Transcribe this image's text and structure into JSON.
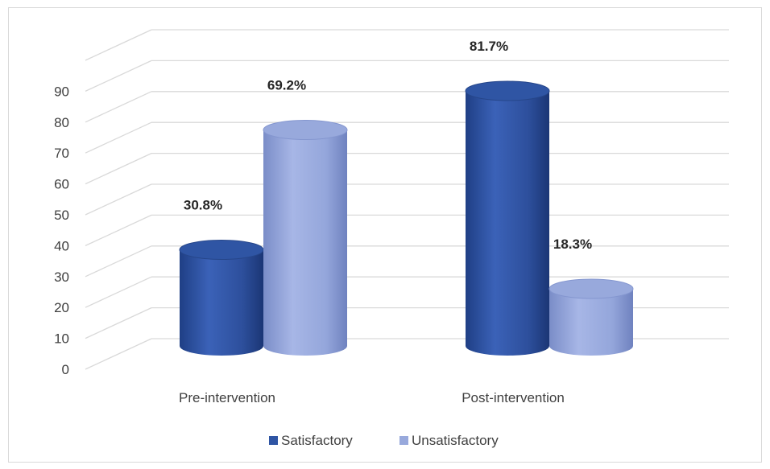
{
  "chart_data": {
    "type": "bar",
    "style": "3d-cylinder",
    "categories": [
      "Pre-intervention",
      "Post-intervention"
    ],
    "series": [
      {
        "name": "Satisfactory",
        "values": [
          30.8,
          81.7
        ],
        "labels": [
          "30.8%",
          "81.7%"
        ],
        "color": "#2f55a4"
      },
      {
        "name": "Unsatisfactory",
        "values": [
          69.2,
          18.3
        ],
        "labels": [
          "69.2%",
          "18.3%"
        ],
        "color": "#98a9dc"
      }
    ],
    "yticks": [
      "0",
      "10",
      "20",
      "30",
      "40",
      "50",
      "60",
      "70",
      "80",
      "90"
    ],
    "ylim": [
      0,
      100
    ],
    "grid": true,
    "legend": "bottom"
  }
}
